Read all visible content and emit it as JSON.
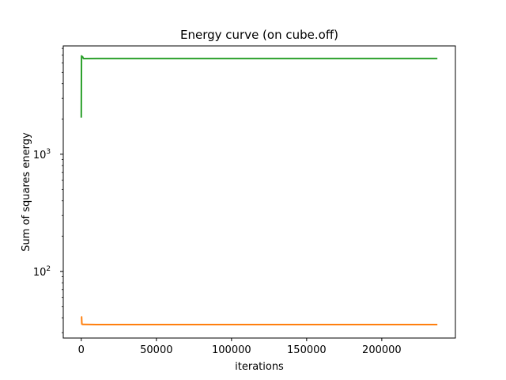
{
  "chart_data": {
    "type": "line",
    "title": "Energy curve (on cube.off)",
    "xlabel": "iterations",
    "ylabel": "Sum of squares energy",
    "xlim": [
      -12000,
      249000
    ],
    "ylim": [
      27,
      8400
    ],
    "yscale": "log",
    "grid": false,
    "x_ticks": [
      {
        "value": 0,
        "label": "0"
      },
      {
        "value": 50000,
        "label": "50000"
      },
      {
        "value": 100000,
        "label": "100000"
      },
      {
        "value": 150000,
        "label": "150000"
      },
      {
        "value": 200000,
        "label": "200000"
      }
    ],
    "y_major_ticks": [
      {
        "value": 100,
        "base": "10",
        "exp": "2"
      },
      {
        "value": 1000,
        "base": "10",
        "exp": "3"
      }
    ],
    "y_minor_ticks": [
      30,
      40,
      50,
      60,
      70,
      80,
      90,
      200,
      300,
      400,
      500,
      600,
      700,
      800,
      900,
      2000,
      3000,
      4000,
      5000,
      6000,
      7000,
      8000
    ],
    "series": [
      {
        "color": "#ff7f0e",
        "points": [
          [
            0,
            41
          ],
          [
            200,
            41
          ],
          [
            400,
            35.5
          ],
          [
            1000,
            35.3
          ],
          [
            10000,
            35.2
          ],
          [
            100000,
            35.2
          ],
          [
            237000,
            35.2
          ]
        ]
      },
      {
        "color": "#2ca02c",
        "points": [
          [
            0,
            2050
          ],
          [
            150,
            6900
          ],
          [
            400,
            6700
          ],
          [
            800,
            6800
          ],
          [
            1500,
            6550
          ],
          [
            10000,
            6560
          ],
          [
            100000,
            6560
          ],
          [
            237000,
            6560
          ]
        ]
      }
    ]
  }
}
